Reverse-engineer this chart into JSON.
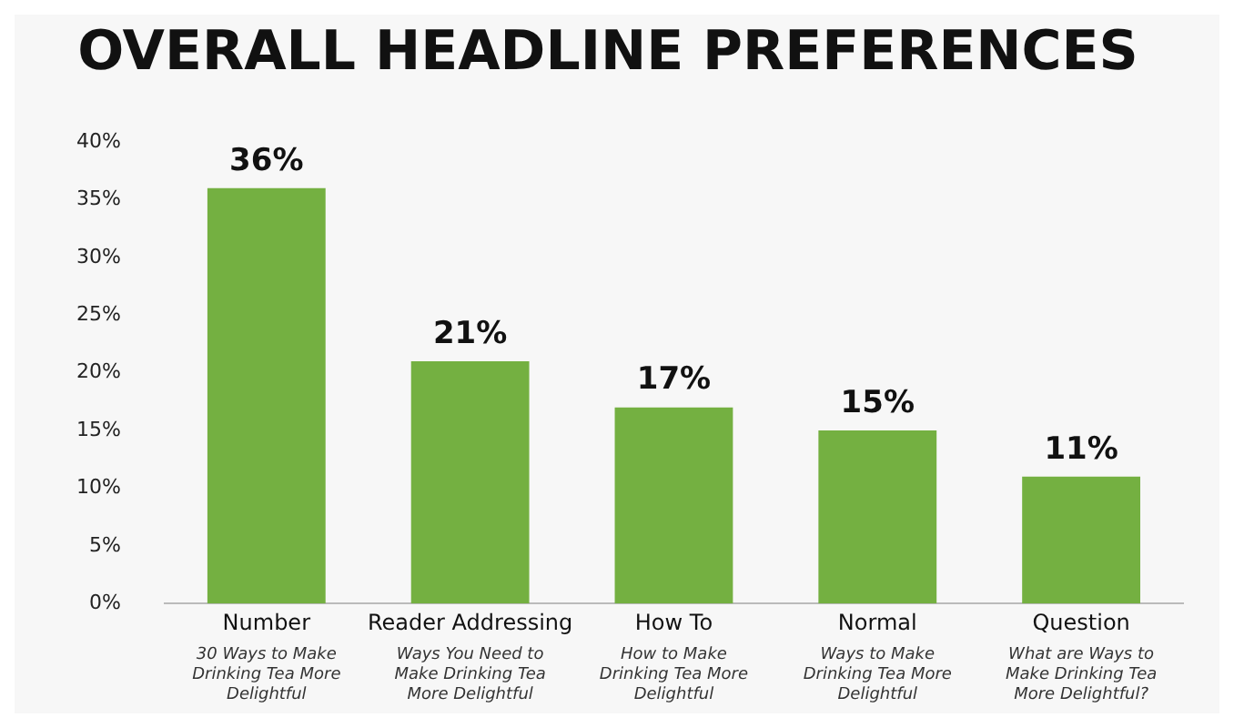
{
  "chart_data": {
    "type": "bar",
    "title": "OVERALL HEADLINE PREFERENCES",
    "categories": [
      "Number",
      "Reader Addressing",
      "How To",
      "Normal",
      "Question"
    ],
    "values": [
      36,
      21,
      17,
      15,
      11
    ],
    "value_labels": [
      "36%",
      "21%",
      "17%",
      "15%",
      "11%"
    ],
    "color": "#74b041",
    "ylim": [
      0,
      40
    ],
    "yticks": [
      {
        "value": 0,
        "label": "0%"
      },
      {
        "value": 5,
        "label": "5%"
      },
      {
        "value": 10,
        "label": "10%"
      },
      {
        "value": 15,
        "label": "15%"
      },
      {
        "value": 20,
        "label": "20%"
      },
      {
        "value": 25,
        "label": "25%"
      },
      {
        "value": 30,
        "label": "30%"
      },
      {
        "value": 35,
        "label": "35%"
      },
      {
        "value": 40,
        "label": "40%"
      }
    ],
    "grid": false,
    "legend": false,
    "annotations": [
      "30 Ways to Make Drinking Tea More Delightful",
      "Ways You Need to Make Drinking Tea More Delightful",
      "How to Make Drinking Tea More Delightful",
      "Ways to Make Drinking Tea More Delightful",
      "What are Ways to Make Drinking Tea More Delightful?"
    ]
  }
}
